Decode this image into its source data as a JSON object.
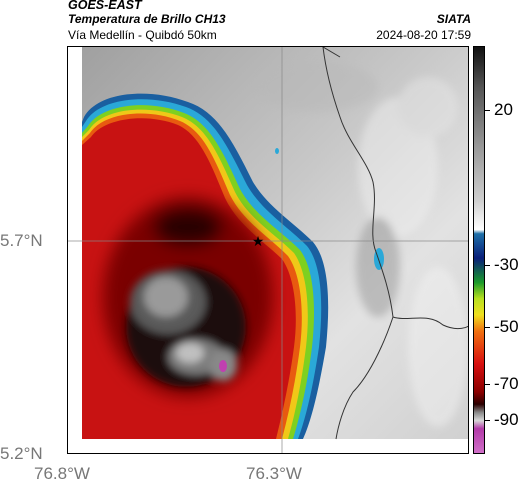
{
  "header": {
    "satellite": "GOES-EAST",
    "product": "Temperatura de Brillo CH13",
    "subtitle": "Vía Medellín - Quibdó 50km",
    "organization": "SIATA",
    "datetime": "2024-08-20 17:59"
  },
  "map": {
    "lat_labels": [
      "5.7°N",
      "5.2°N"
    ],
    "lon_labels": [
      "76.8°W",
      "76.3°W"
    ],
    "marker_icon": "star-icon"
  },
  "colorbar": {
    "labels": [
      "20",
      "-30",
      "-50",
      "-70",
      "-90"
    ],
    "gradient_colors": [
      "#111111",
      "#555555",
      "#9a9a9a",
      "#d0d0d0",
      "#ffffff",
      "#1d6fa8",
      "#0a1f7a",
      "#1a9a2a",
      "#b8e020",
      "#f0e020",
      "#f07010",
      "#d81010",
      "#8a0000",
      "#2a0000",
      "#888888",
      "#d8d8d8",
      "#b23aa8",
      "#d070c8"
    ]
  }
}
